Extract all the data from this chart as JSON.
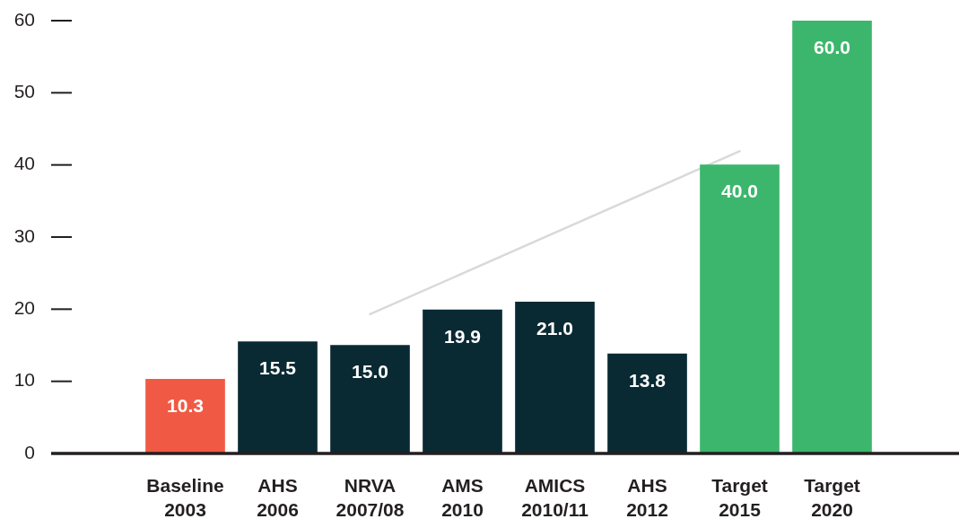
{
  "chart_data": {
    "type": "bar",
    "categories": [
      "Baseline\n2003",
      "AHS\n2006",
      "NRVA\n2007/08",
      "AMS\n2010",
      "AMICS\n2010/11",
      "AHS\n2012",
      "Target\n2015",
      "Target\n2020"
    ],
    "series": [
      {
        "colors": [
          "#f05a44",
          "#0a2a33",
          "#0a2a33",
          "#0a2a33",
          "#0a2a33",
          "#0a2a33",
          "#3cb66c",
          "#3cb66c"
        ],
        "values": [
          10.3,
          15.5,
          15.0,
          19.9,
          21.0,
          13.8,
          40.0,
          60.0
        ],
        "value_labels": [
          "10.3",
          "15.5",
          "15.0",
          "19.9",
          "21.0",
          "13.8",
          "40.0",
          "60.0"
        ]
      },
      {
        "type": "line",
        "color": "#d9d9d9",
        "x": [
          "NRVA\n2007/08",
          "Target\n2015"
        ],
        "values": [
          19.3,
          41.9
        ],
        "marker": "none"
      }
    ],
    "ylim": [
      0,
      60
    ],
    "yticks": [
      0,
      10,
      20,
      30,
      40,
      50,
      60
    ]
  }
}
